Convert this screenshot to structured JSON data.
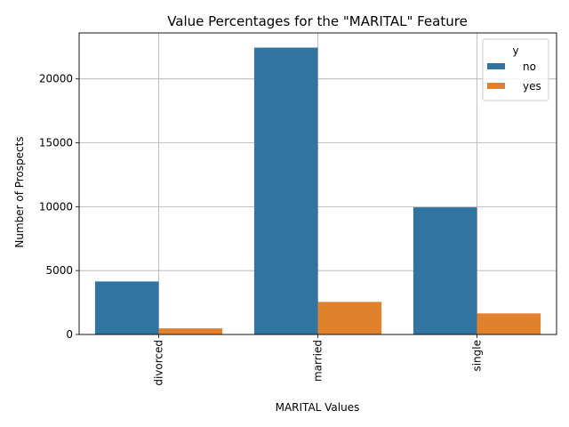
{
  "chart_data": {
    "type": "bar",
    "title": "Value Percentages for the \"MARITAL\" Feature",
    "xlabel": "MARITAL Values",
    "ylabel": "Number of Prospects",
    "categories": [
      "divorced",
      "married",
      "single"
    ],
    "series": [
      {
        "name": "no",
        "color": "#3274a1",
        "values": [
          4150,
          22450,
          9950
        ]
      },
      {
        "name": "yes",
        "color": "#e1812c",
        "values": [
          480,
          2550,
          1650
        ]
      }
    ],
    "ylim": [
      0,
      23600
    ],
    "yticks": [
      0,
      5000,
      10000,
      15000,
      20000
    ],
    "ytick_labels": [
      "0",
      "5000",
      "10000",
      "15000",
      "20000"
    ],
    "legend": {
      "title": "y",
      "placement": "top-right"
    },
    "grid": true
  }
}
